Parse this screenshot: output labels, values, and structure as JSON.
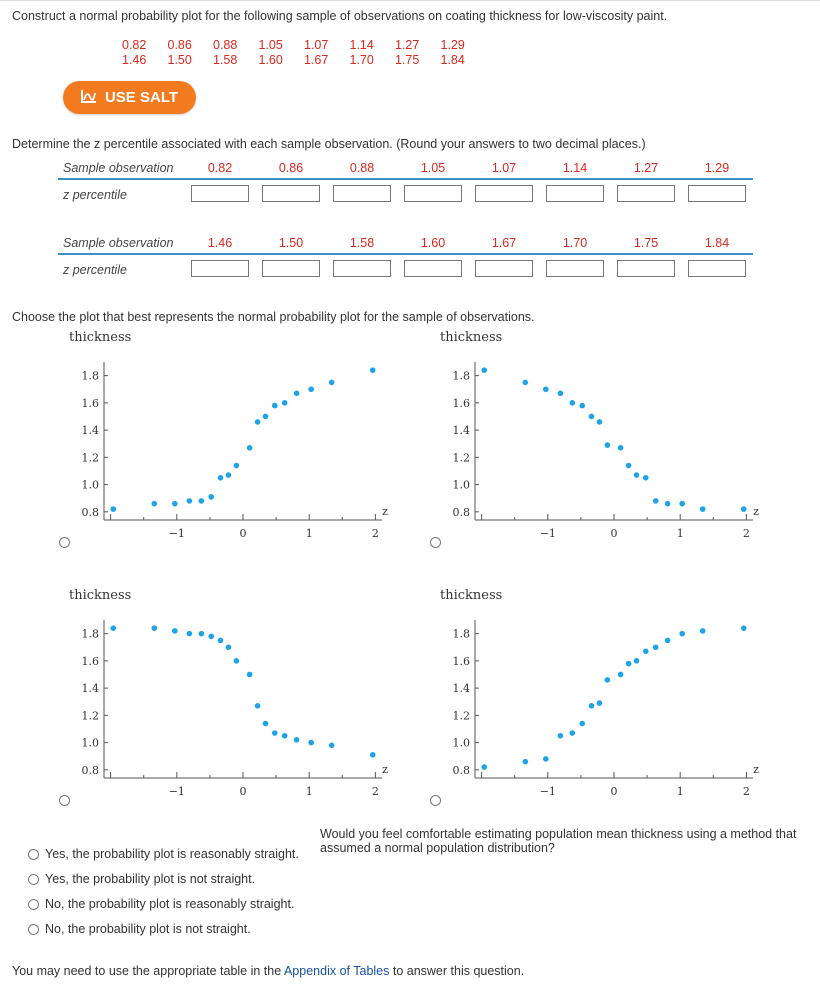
{
  "intro": "Construct a normal probability plot for the following sample of observations on coating thickness for low-viscosity paint.",
  "observations_row1": [
    "0.82",
    "0.86",
    "0.88",
    "1.05",
    "1.07",
    "1.14",
    "1.27",
    "1.29"
  ],
  "observations_row2": [
    "1.46",
    "1.50",
    "1.58",
    "1.60",
    "1.67",
    "1.70",
    "1.75",
    "1.84"
  ],
  "salt_button": "USE SALT",
  "instruction": "Determine the z percentile associated with each sample observation. (Round your answers to two decimal places.)",
  "table1": {
    "row_label": "Sample observation",
    "z_label": "z percentile",
    "values": [
      "0.82",
      "0.86",
      "0.88",
      "1.05",
      "1.07",
      "1.14",
      "1.27",
      "1.29"
    ]
  },
  "table2": {
    "row_label": "Sample observation",
    "z_label": "z percentile",
    "values": [
      "1.46",
      "1.50",
      "1.58",
      "1.60",
      "1.67",
      "1.70",
      "1.75",
      "1.84"
    ]
  },
  "choose_text": "Choose the plot that best represents the normal probability plot for the sample of observations.",
  "colors": {
    "accent": "#3d8fc4",
    "points": "#1ea3e6",
    "red": "#d9281e",
    "salt": "#f47a20"
  },
  "chart_data": [
    {
      "type": "scatter",
      "title": "thickness",
      "xlabel": "z",
      "xlim": [
        -2.1,
        2.1
      ],
      "ylim": [
        0.74,
        1.9
      ],
      "xticks": [
        "-1",
        "0",
        "1",
        "2"
      ],
      "yticks": [
        "0.8",
        "1.0",
        "1.2",
        "1.4",
        "1.6",
        "1.8"
      ],
      "x": [
        -1.96,
        -1.34,
        -1.03,
        -0.81,
        -0.63,
        -0.48,
        -0.34,
        -0.22,
        -0.1,
        0.1,
        0.22,
        0.34,
        0.48,
        0.63,
        0.81,
        1.03,
        1.34,
        1.96
      ],
      "y": [
        0.82,
        0.86,
        0.86,
        0.88,
        0.88,
        0.91,
        1.05,
        1.07,
        1.14,
        1.27,
        1.46,
        1.5,
        1.58,
        1.6,
        1.67,
        1.7,
        1.75,
        1.84
      ]
    },
    {
      "type": "scatter",
      "title": "thickness",
      "xlabel": "z",
      "xlim": [
        -2.1,
        2.1
      ],
      "ylim": [
        0.74,
        1.9
      ],
      "xticks": [
        "-1",
        "0",
        "1",
        "2"
      ],
      "yticks": [
        "0.8",
        "1.0",
        "1.2",
        "1.4",
        "1.6",
        "1.8"
      ],
      "x": [
        -1.96,
        -1.34,
        -1.03,
        -0.81,
        -0.63,
        -0.48,
        -0.34,
        -0.22,
        -0.1,
        0.1,
        0.22,
        0.34,
        0.48,
        0.63,
        0.81,
        1.03,
        1.34,
        1.96
      ],
      "y": [
        1.84,
        1.75,
        1.7,
        1.67,
        1.6,
        1.58,
        1.5,
        1.46,
        1.29,
        1.27,
        1.14,
        1.07,
        1.05,
        0.88,
        0.86,
        0.86,
        0.82,
        0.82
      ]
    },
    {
      "type": "scatter",
      "title": "thickness",
      "xlabel": "z",
      "xlim": [
        -2.1,
        2.1
      ],
      "ylim": [
        0.74,
        1.9
      ],
      "xticks": [
        "-1",
        "0",
        "1",
        "2"
      ],
      "yticks": [
        "0.8",
        "1.0",
        "1.2",
        "1.4",
        "1.6",
        "1.8"
      ],
      "x": [
        -1.96,
        -1.34,
        -1.03,
        -0.81,
        -0.63,
        -0.48,
        -0.34,
        -0.22,
        -0.1,
        0.1,
        0.22,
        0.34,
        0.48,
        0.63,
        0.81,
        1.03,
        1.34,
        1.96
      ],
      "y": [
        1.84,
        1.84,
        1.82,
        1.8,
        1.8,
        1.78,
        1.75,
        1.7,
        1.6,
        1.5,
        1.27,
        1.14,
        1.07,
        1.05,
        1.02,
        1.0,
        0.98,
        0.91
      ]
    },
    {
      "type": "scatter",
      "title": "thickness",
      "xlabel": "z",
      "xlim": [
        -2.1,
        2.1
      ],
      "ylim": [
        0.74,
        1.9
      ],
      "xticks": [
        "-1",
        "0",
        "1",
        "2"
      ],
      "yticks": [
        "0.8",
        "1.0",
        "1.2",
        "1.4",
        "1.6",
        "1.8"
      ],
      "x": [
        -1.96,
        -1.34,
        -1.03,
        -0.81,
        -0.63,
        -0.48,
        -0.34,
        -0.22,
        -0.1,
        0.1,
        0.22,
        0.34,
        0.48,
        0.63,
        0.81,
        1.03,
        1.34,
        1.96
      ],
      "y": [
        0.82,
        0.86,
        0.88,
        1.05,
        1.07,
        1.14,
        1.27,
        1.29,
        1.46,
        1.5,
        1.58,
        1.6,
        1.67,
        1.7,
        1.75,
        1.8,
        1.82,
        1.84
      ]
    }
  ],
  "question2": "Would you feel comfortable estimating population mean thickness using a method that assumed a normal population distribution?",
  "options": [
    "Yes, the probability plot is reasonably straight.",
    "Yes, the probability plot is not straight.",
    "No, the probability plot is reasonably straight.",
    "No, the probability plot is not straight."
  ],
  "footer": {
    "before": "You may need to use the appropriate table in the ",
    "link": "Appendix of Tables",
    "after": " to answer this question."
  }
}
